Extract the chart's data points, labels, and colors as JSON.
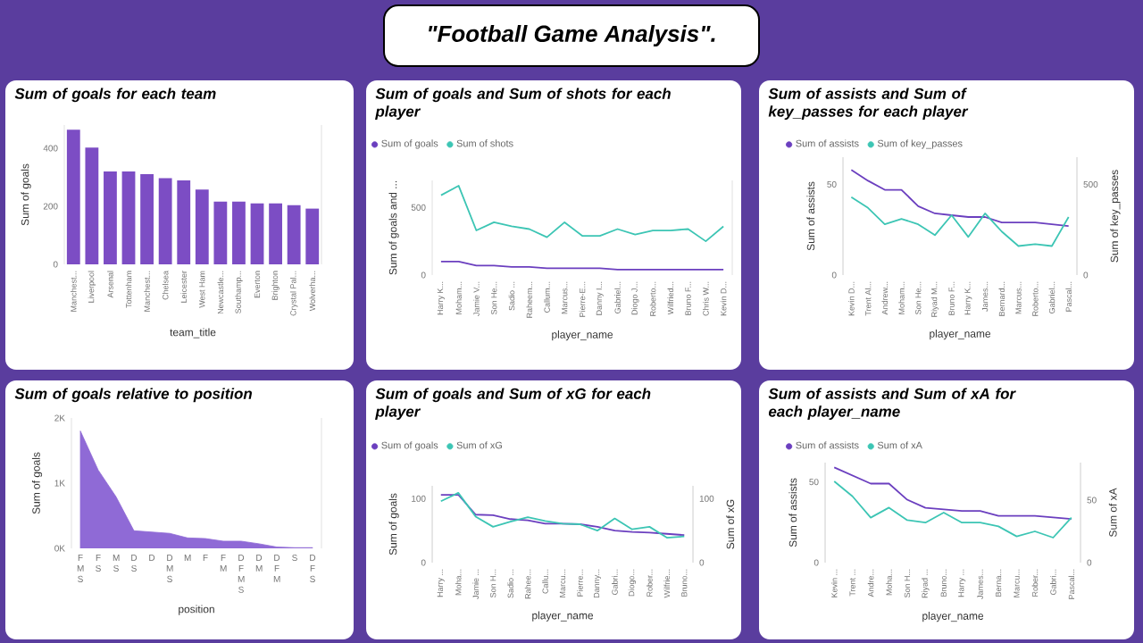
{
  "chart_data": [
    {
      "type": "other",
      "title": "\"Football Game Analysis\"."
    },
    {
      "type": "bar",
      "title": "Sum of goals for each team",
      "xlabel": "team_title",
      "ylabel": "Sum of goals",
      "categories": [
        "Manchest...",
        "Liverpool",
        "Arsenal",
        "Tottenham",
        "Manchest...",
        "Chelsea",
        "Leicester",
        "West Ham",
        "Newcastle...",
        "Southamp...",
        "Everton",
        "Brighton",
        "Crystal Pal...",
        "Wolverha..."
      ],
      "values": [
        464,
        402,
        320,
        320,
        311,
        297,
        289,
        258,
        216,
        216,
        210,
        210,
        204,
        192
      ],
      "color": "#7c4dc4",
      "ylim": [
        0,
        480
      ],
      "yticks": [
        0,
        200,
        400
      ]
    },
    {
      "type": "line",
      "title": "Sum of goals and Sum of shots for each player",
      "xlabel": "player_name",
      "ylabel": "Sum of goals and ...",
      "categories": [
        "Harry K...",
        "Moham...",
        "Jamie V...",
        "Son He...",
        "Sadio ...",
        "Raheem...",
        "Callum...",
        "Marcus...",
        "Pierre-E...",
        "Danny I...",
        "Gabriel...",
        "Diogo J...",
        "Roberto...",
        "Wilfried...",
        "Bruno F...",
        "Chris W...",
        "Kevin D..."
      ],
      "series": [
        {
          "name": "Sum of goals",
          "color": "#6b3fbf",
          "values": [
            100,
            100,
            70,
            70,
            60,
            60,
            50,
            50,
            50,
            50,
            40,
            40,
            40,
            40,
            40,
            40,
            40
          ]
        },
        {
          "name": "Sum of shots",
          "color": "#3cc5b4",
          "values": [
            590,
            660,
            330,
            390,
            360,
            340,
            280,
            390,
            290,
            290,
            340,
            300,
            330,
            330,
            340,
            250,
            360
          ]
        }
      ],
      "ylim": [
        0,
        700
      ],
      "yticks": [
        0,
        500
      ],
      "legend": "top left"
    },
    {
      "type": "line",
      "title": "Sum of assists and Sum of key_passes for each player",
      "xlabel": "player_name",
      "ylabel": "Sum of assists",
      "y2label": "Sum of key_passes",
      "categories": [
        "Kevin D...",
        "Trent Al...",
        "Andrew...",
        "Moham...",
        "Son He...",
        "Riyad M...",
        "Bruno F...",
        "Harry K...",
        "James...",
        "Bernard...",
        "Marcus...",
        "Roberto...",
        "Gabriel...",
        "Pascal..."
      ],
      "series": [
        {
          "name": "Sum of assists",
          "color": "#6b3fbf",
          "values": [
            58,
            52,
            47,
            47,
            38,
            34,
            33,
            32,
            32,
            29,
            29,
            29,
            28,
            27
          ]
        },
        {
          "name": "Sum of key_passes",
          "color": "#3cc5b4",
          "axis": "y2",
          "values": [
            430,
            370,
            280,
            310,
            280,
            220,
            330,
            210,
            340,
            240,
            160,
            170,
            160,
            320
          ]
        }
      ],
      "ylim": [
        0,
        65
      ],
      "yticks": [
        0,
        50
      ],
      "y2lim": [
        0,
        650
      ],
      "y2ticks": [
        0,
        500
      ],
      "legend": "top left"
    },
    {
      "type": "area",
      "title": "Sum of goals relative to position",
      "xlabel": "position",
      "ylabel": "Sum of goals",
      "categories": [
        "F M S",
        "F S",
        "M S",
        "D S",
        "D",
        "D M S",
        "M",
        "F",
        "F M",
        "D F M S",
        "D M",
        "D F M",
        "S",
        "D F S"
      ],
      "values": [
        1800,
        1200,
        790,
        270,
        250,
        230,
        160,
        150,
        110,
        110,
        70,
        20,
        10,
        10
      ],
      "color": "#8f6ad6",
      "ylim": [
        0,
        2000
      ],
      "yticks": [
        {
          "value": 0,
          "label": "0K"
        },
        {
          "value": 1000,
          "label": "1K"
        },
        {
          "value": 2000,
          "label": "2K"
        }
      ]
    },
    {
      "type": "line",
      "title": "Sum of goals and Sum of xG for each player",
      "xlabel": "player_name",
      "ylabel": "Sum of goals",
      "y2label": "Sum of xG",
      "categories": [
        "Harry ...",
        "Moha...",
        "Jamie ...",
        "Son H...",
        "Sadio ...",
        "Rahee...",
        "Callu...",
        "Marcu...",
        "Pierre...",
        "Danny...",
        "Gabri...",
        "Diogo...",
        "Rober...",
        "Wilfrie...",
        "Bruno..."
      ],
      "series": [
        {
          "name": "Sum of goals",
          "color": "#6b3fbf",
          "values": [
            106,
            106,
            75,
            74,
            68,
            66,
            61,
            61,
            60,
            56,
            50,
            48,
            47,
            45,
            43
          ]
        },
        {
          "name": "Sum of xG",
          "color": "#3cc5b4",
          "axis": "y2",
          "values": [
            96,
            109,
            72,
            56,
            64,
            71,
            65,
            61,
            60,
            50,
            69,
            52,
            56,
            39,
            41
          ]
        }
      ],
      "ylim": [
        0,
        120
      ],
      "yticks": [
        0,
        100
      ],
      "y2lim": [
        0,
        120
      ],
      "y2ticks": [
        0,
        100
      ],
      "legend": "top left"
    },
    {
      "type": "line",
      "title": "Sum of assists and Sum of xA for each player_name",
      "xlabel": "player_name",
      "ylabel": "Sum of assists",
      "y2label": "Sum of xA",
      "categories": [
        "Kevin ...",
        "Trent ...",
        "Andre...",
        "Moha...",
        "Son H...",
        "Riyad ...",
        "Bruno...",
        "Harry ...",
        "James...",
        "Berna...",
        "Marcu...",
        "Rober...",
        "Gabri...",
        "Pascal..."
      ],
      "series": [
        {
          "name": "Sum of assists",
          "color": "#6b3fbf",
          "values": [
            59,
            54,
            49,
            49,
            39,
            34,
            33,
            32,
            32,
            29,
            29,
            29,
            28,
            27
          ]
        },
        {
          "name": "Sum of xA",
          "color": "#3cc5b4",
          "axis": "y2",
          "values": [
            65,
            53,
            36,
            44,
            34,
            32,
            40,
            32,
            32,
            29,
            21,
            25,
            20,
            36
          ]
        }
      ],
      "ylim": [
        0,
        62
      ],
      "yticks": [
        0,
        50
      ],
      "y2lim": [
        0,
        80
      ],
      "y2ticks": [
        0,
        50
      ],
      "legend": "top left"
    }
  ]
}
